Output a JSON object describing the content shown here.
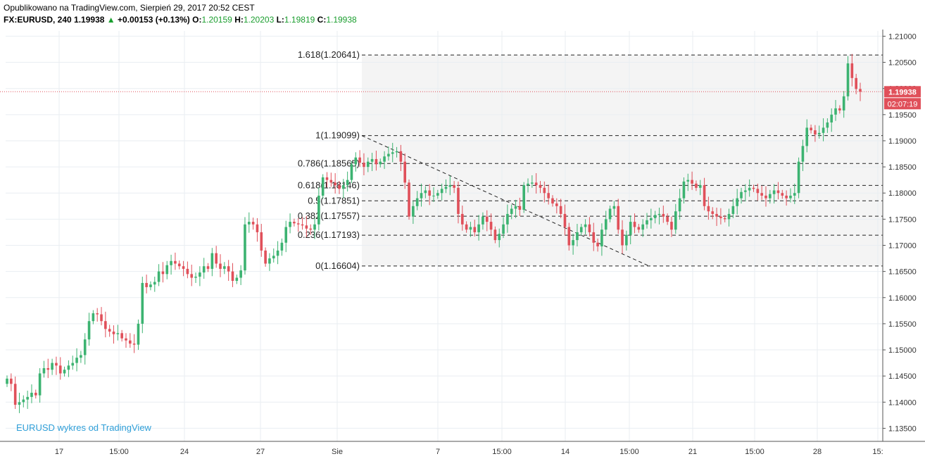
{
  "header": {
    "published": "Opublikowano na TradingView.com, Sierpień 29, 2017 20:52 CEST",
    "symbol": "FX:EURUSD, 240",
    "last": "1.19938",
    "change": "+0.00153 (+0.13%)",
    "o_label": "O:",
    "o_value": "1.20159",
    "h_label": "H:",
    "h_value": "1.20203",
    "l_label": "L:",
    "l_value": "1.19819",
    "c_label": "C:",
    "c_value": "1.19938",
    "up_arrow_icon": "triangle-up-icon"
  },
  "watermark": "EURUSD wykres od TradingView",
  "price_tag": "1.19938",
  "countdown_tag": "02:07:19",
  "colors": {
    "up": "#26a69a",
    "up_body": "#3cb371",
    "down": "#e0505a",
    "grid": "#e9eef2",
    "fib_zone": "#f4f4f4",
    "price_line": "#e0505a",
    "watermark": "#2f9fd8"
  },
  "chart_data": {
    "type": "candlestick",
    "symbol": "FX:EURUSD",
    "interval": "240",
    "y_axis": {
      "range": [
        1.1325,
        1.211
      ],
      "ticks": [
        "1.21000",
        "1.20500",
        "1.20000",
        "1.19500",
        "1.19000",
        "1.18500",
        "1.18000",
        "1.17500",
        "1.17000",
        "1.16500",
        "1.16000",
        "1.15500",
        "1.15000",
        "1.14500",
        "1.14000",
        "1.13500"
      ]
    },
    "x_axis": {
      "ticks": [
        "17",
        "15:00",
        "24",
        "27",
        "Sie",
        "7",
        "15:00",
        "14",
        "15:00",
        "21",
        "15:00",
        "28",
        "15:"
      ]
    },
    "fibonacci": [
      {
        "label": "1.618(1.20641)",
        "price": 1.20641
      },
      {
        "label": "1(1.19099)",
        "price": 1.19099
      },
      {
        "label": "0.786(1.18565)",
        "price": 1.18565
      },
      {
        "label": "0.618(1.18146)",
        "price": 1.18146
      },
      {
        "label": "0.5(1.17851)",
        "price": 1.17851
      },
      {
        "label": "0.382(1.17557)",
        "price": 1.17557
      },
      {
        "label": "0.236(1.17193)",
        "price": 1.17193
      },
      {
        "label": "0(1.16604)",
        "price": 1.16604
      }
    ],
    "trendline": {
      "from_price": 1.19099,
      "to_price": 1.16604
    },
    "current_price": 1.19938,
    "closes": [
      1.1445,
      1.1435,
      1.1395,
      1.14,
      1.1405,
      1.141,
      1.1418,
      1.1413,
      1.1455,
      1.1465,
      1.1462,
      1.1475,
      1.147,
      1.1455,
      1.1462,
      1.147,
      1.1475,
      1.1485,
      1.149,
      1.152,
      1.1555,
      1.157,
      1.1568,
      1.1555,
      1.154,
      1.1535,
      1.153,
      1.1532,
      1.1522,
      1.1518,
      1.1512,
      1.151,
      1.155,
      1.1628,
      1.162,
      1.1625,
      1.163,
      1.165,
      1.1645,
      1.1662,
      1.167,
      1.1665,
      1.166,
      1.1655,
      1.1645,
      1.1638,
      1.164,
      1.1648,
      1.166,
      1.1655,
      1.1685,
      1.1665,
      1.1655,
      1.166,
      1.165,
      1.1632,
      1.1638,
      1.1652,
      1.174,
      1.1745,
      1.174,
      1.1725,
      1.169,
      1.1665,
      1.1675,
      1.168,
      1.169,
      1.1705,
      1.1735,
      1.1745,
      1.1742,
      1.174,
      1.1738,
      1.1732,
      1.173,
      1.174,
      1.1795,
      1.183,
      1.1825,
      1.182,
      1.1815,
      1.1808,
      1.1815,
      1.1825,
      1.1855,
      1.1868,
      1.1858,
      1.185,
      1.186,
      1.1865,
      1.1855,
      1.186,
      1.187,
      1.1875,
      1.1878,
      1.188,
      1.186,
      1.182,
      1.1755,
      1.1775,
      1.179,
      1.18,
      1.1805,
      1.1795,
      1.1795,
      1.18,
      1.1808,
      1.1812,
      1.1815,
      1.181,
      1.176,
      1.174,
      1.173,
      1.1735,
      1.1725,
      1.174,
      1.1755,
      1.1745,
      1.173,
      1.171,
      1.1722,
      1.174,
      1.176,
      1.177,
      1.1775,
      1.1768,
      1.1815,
      1.1818,
      1.182,
      1.1815,
      1.181,
      1.18,
      1.179,
      1.178,
      1.1775,
      1.176,
      1.1735,
      1.17,
      1.171,
      1.1725,
      1.1735,
      1.174,
      1.1725,
      1.1705,
      1.1698,
      1.173,
      1.175,
      1.177,
      1.1775,
      1.173,
      1.17,
      1.172,
      1.1745,
      1.1735,
      1.173,
      1.174,
      1.1748,
      1.1752,
      1.1758,
      1.176,
      1.1755,
      1.1745,
      1.173,
      1.1765,
      1.179,
      1.1822,
      1.1825,
      1.1818,
      1.181,
      1.1815,
      1.1775,
      1.1765,
      1.176,
      1.1755,
      1.1752,
      1.175,
      1.176,
      1.1775,
      1.179,
      1.1802,
      1.1805,
      1.181,
      1.1808,
      1.18,
      1.1795,
      1.179,
      1.1798,
      1.1805,
      1.18,
      1.1795,
      1.179,
      1.1795,
      1.18,
      1.186,
      1.189,
      1.1925,
      1.192,
      1.1912,
      1.1915,
      1.1925,
      1.1935,
      1.195,
      1.1962,
      1.1958,
      1.1985,
      1.2048,
      1.202,
      1.1999,
      1.19938
    ]
  }
}
